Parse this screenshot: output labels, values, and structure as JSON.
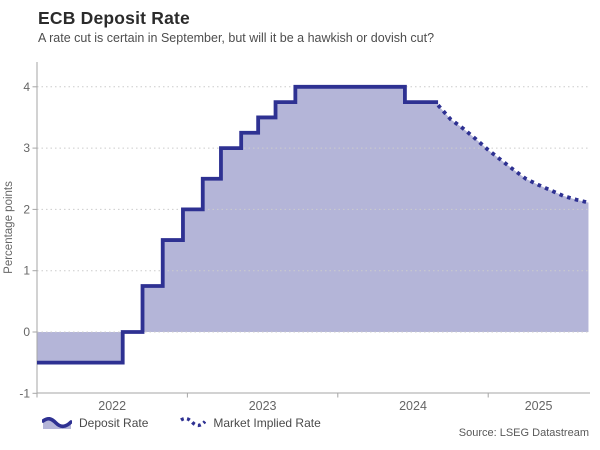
{
  "header": {
    "title": "ECB Deposit Rate",
    "subtitle": "A rate cut is certain in September, but will it be a hawkish or dovish cut?"
  },
  "colors": {
    "line": "#2e3192",
    "area_fill": "rgba(46,49,146,0.36)",
    "grid": "#cccccc",
    "axis": "#a6a6a6",
    "tick_text": "#666666",
    "year_text": "#666666",
    "axis_title_text": "#666666"
  },
  "chart_data": {
    "type": "line",
    "variant": "step-line with area fill to zero baseline; dotted forward curve",
    "title": "ECB Deposit Rate",
    "subtitle": "A rate cut is certain in September, but will it be a hawkish or dovish cut?",
    "ylabel": "Percentage points",
    "ylim": [
      -1,
      4
    ],
    "yticks": [
      4,
      3,
      2,
      1,
      0,
      -1
    ],
    "x_year_ticks": [
      2022,
      2023,
      2024,
      2025
    ],
    "x_range": [
      "2022-01-01",
      "2025-09-01"
    ],
    "grid": "dotted horizontal gridlines",
    "legend_position": "bottom-left",
    "series": [
      {
        "name": "Deposit Rate",
        "style": "solid-step",
        "points": [
          [
            "2022-01-01",
            -0.5
          ],
          [
            "2022-07-27",
            0.0
          ],
          [
            "2022-09-14",
            0.75
          ],
          [
            "2022-11-02",
            1.5
          ],
          [
            "2022-12-21",
            2.0
          ],
          [
            "2023-02-08",
            2.5
          ],
          [
            "2023-03-22",
            3.0
          ],
          [
            "2023-05-10",
            3.25
          ],
          [
            "2023-06-21",
            3.5
          ],
          [
            "2023-08-02",
            3.75
          ],
          [
            "2023-09-20",
            4.0
          ],
          [
            "2024-06-12",
            3.75
          ],
          [
            "2024-09-01",
            3.75
          ]
        ]
      },
      {
        "name": "Market Implied Rate",
        "style": "dotted",
        "points": [
          [
            "2024-09-01",
            3.7
          ],
          [
            "2024-10-01",
            3.47
          ],
          [
            "2024-11-01",
            3.32
          ],
          [
            "2024-12-01",
            3.15
          ],
          [
            "2025-01-01",
            2.97
          ],
          [
            "2025-02-01",
            2.81
          ],
          [
            "2025-03-01",
            2.65
          ],
          [
            "2025-04-01",
            2.5
          ],
          [
            "2025-05-01",
            2.4
          ],
          [
            "2025-06-01",
            2.31
          ],
          [
            "2025-07-01",
            2.22
          ],
          [
            "2025-08-01",
            2.16
          ],
          [
            "2025-09-01",
            2.11
          ]
        ]
      }
    ],
    "source": "Source: LSEG Datastream"
  },
  "legend": {
    "items": [
      {
        "label": "Deposit Rate",
        "icon": "solid-wave-area-icon"
      },
      {
        "label": "Market Implied Rate",
        "icon": "dotted-wave-icon"
      }
    ]
  },
  "footer": {
    "source": "Source: LSEG Datastream"
  }
}
